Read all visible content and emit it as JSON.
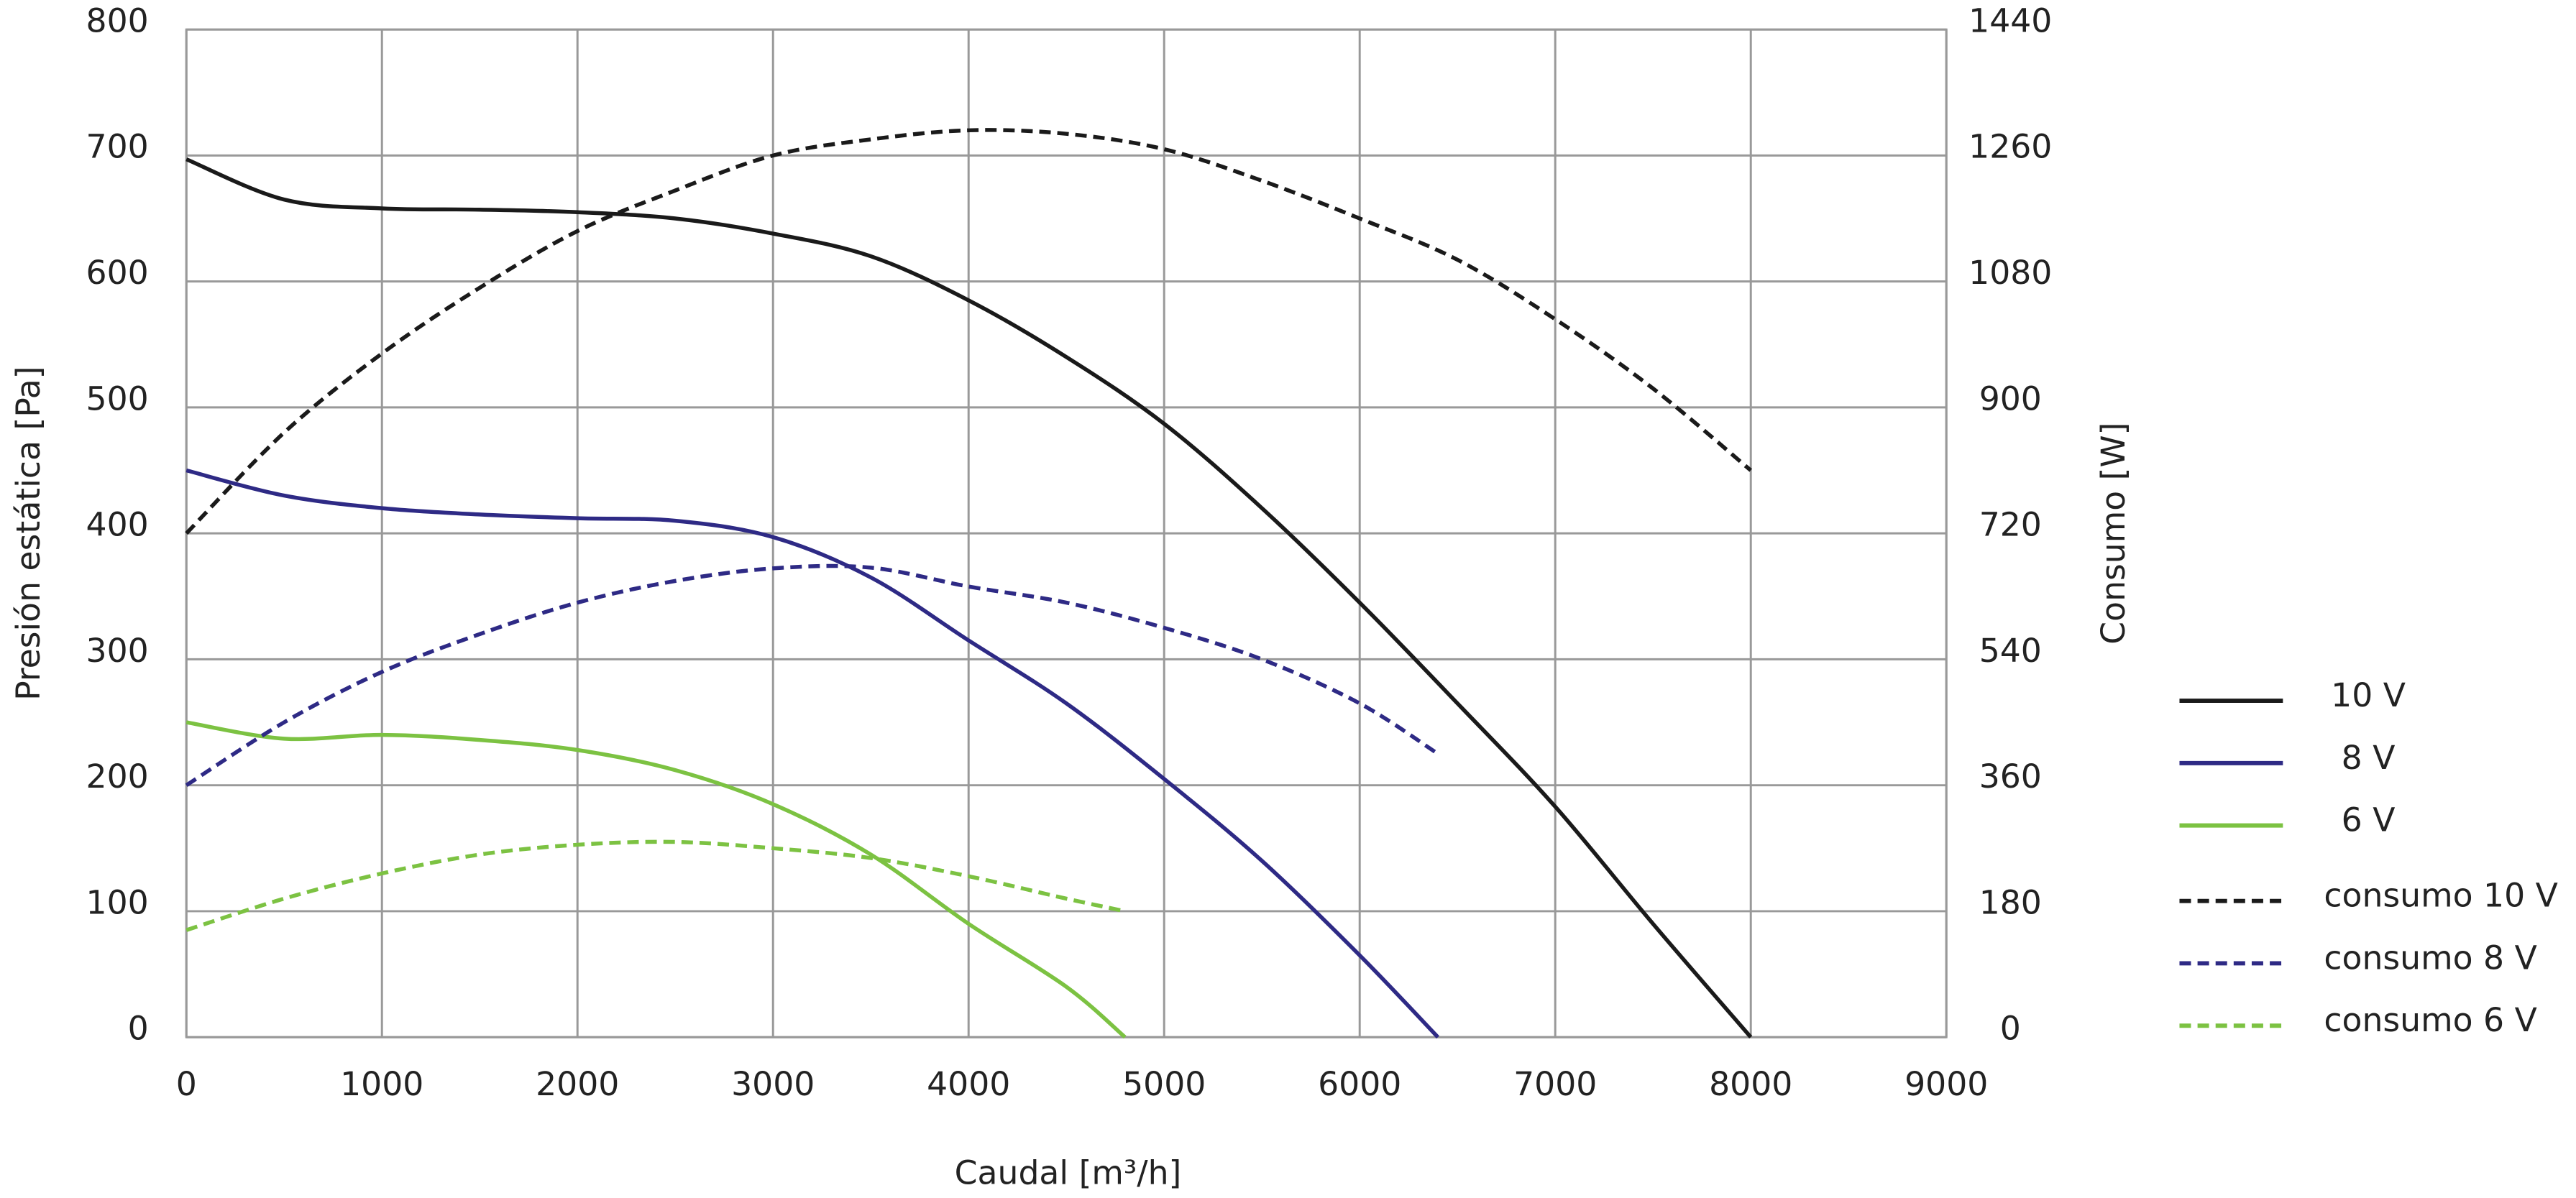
{
  "chart_data": {
    "type": "line",
    "x_label": "Caudal [m³/h]",
    "y_label": "Presión estática [Pa]",
    "y2_label": "Consumo [W]",
    "xlim": [
      0,
      9000
    ],
    "xticks": [
      0,
      1000,
      2000,
      3000,
      4000,
      5000,
      6000,
      7000,
      8000,
      9000
    ],
    "ylim": [
      0,
      800
    ],
    "yticks": [
      0,
      100,
      200,
      300,
      400,
      500,
      600,
      700,
      800
    ],
    "y2lim": [
      0,
      1440
    ],
    "y2ticks": [
      0,
      180,
      360,
      540,
      720,
      900,
      1080,
      1260,
      1440
    ],
    "grid": true,
    "legend": "right",
    "series": [
      {
        "name": "10 V",
        "color": "#1a1a1a",
        "dashed": false,
        "x": [
          0,
          500,
          1000,
          1500,
          2000,
          2500,
          3000,
          3500,
          4000,
          4500,
          5000,
          5500,
          6000,
          6500,
          7000,
          7500,
          8000
        ],
        "values": [
          697,
          665,
          658,
          657,
          655,
          650,
          638,
          620,
          585,
          540,
          487,
          420,
          345,
          265,
          183,
          90,
          0
        ]
      },
      {
        "name": "8 V",
        "color": "#2e2a85",
        "dashed": false,
        "x": [
          0,
          500,
          1000,
          1500,
          2000,
          2500,
          3000,
          3500,
          4000,
          4500,
          5000,
          5500,
          6000,
          6400
        ],
        "values": [
          450,
          430,
          420,
          415,
          412,
          410,
          397,
          365,
          315,
          265,
          205,
          140,
          65,
          0
        ]
      },
      {
        "name": "6 V",
        "color": "#7cc242",
        "dashed": false,
        "x": [
          0,
          500,
          1000,
          1500,
          2000,
          2500,
          3000,
          3500,
          4000,
          4500,
          4800
        ],
        "values": [
          250,
          237,
          240,
          236,
          228,
          212,
          185,
          145,
          90,
          40,
          0
        ]
      },
      {
        "name": "consumo 10 V",
        "color": "#1a1a1a",
        "dashed": true,
        "axis": "y2",
        "x": [
          0,
          500,
          1000,
          1500,
          2000,
          2500,
          3000,
          3500,
          4000,
          4500,
          5000,
          5500,
          6000,
          6500,
          7000,
          7500,
          8000
        ],
        "values": [
          720,
          864,
          977,
          1071,
          1152,
          1210,
          1260,
          1283,
          1296,
          1291,
          1269,
          1224,
          1170,
          1111,
          1026,
          927,
          810
        ]
      },
      {
        "name": "consumo 8 V",
        "color": "#2e2a85",
        "dashed": true,
        "axis": "y2",
        "x": [
          0,
          500,
          1000,
          1500,
          2000,
          2500,
          3000,
          3500,
          4000,
          4500,
          5000,
          5500,
          6000,
          6400
        ],
        "values": [
          360,
          450,
          522,
          576,
          621,
          652,
          670,
          671,
          644,
          621,
          585,
          540,
          477,
          405
        ]
      },
      {
        "name": "consumo 6 V",
        "color": "#7cc242",
        "dashed": true,
        "axis": "y2",
        "x": [
          0,
          500,
          1000,
          1500,
          2000,
          2500,
          3000,
          3500,
          4000,
          4500,
          4800
        ],
        "values": [
          153,
          198,
          234,
          261,
          275,
          279,
          270,
          256,
          230,
          198,
          180
        ]
      }
    ]
  }
}
